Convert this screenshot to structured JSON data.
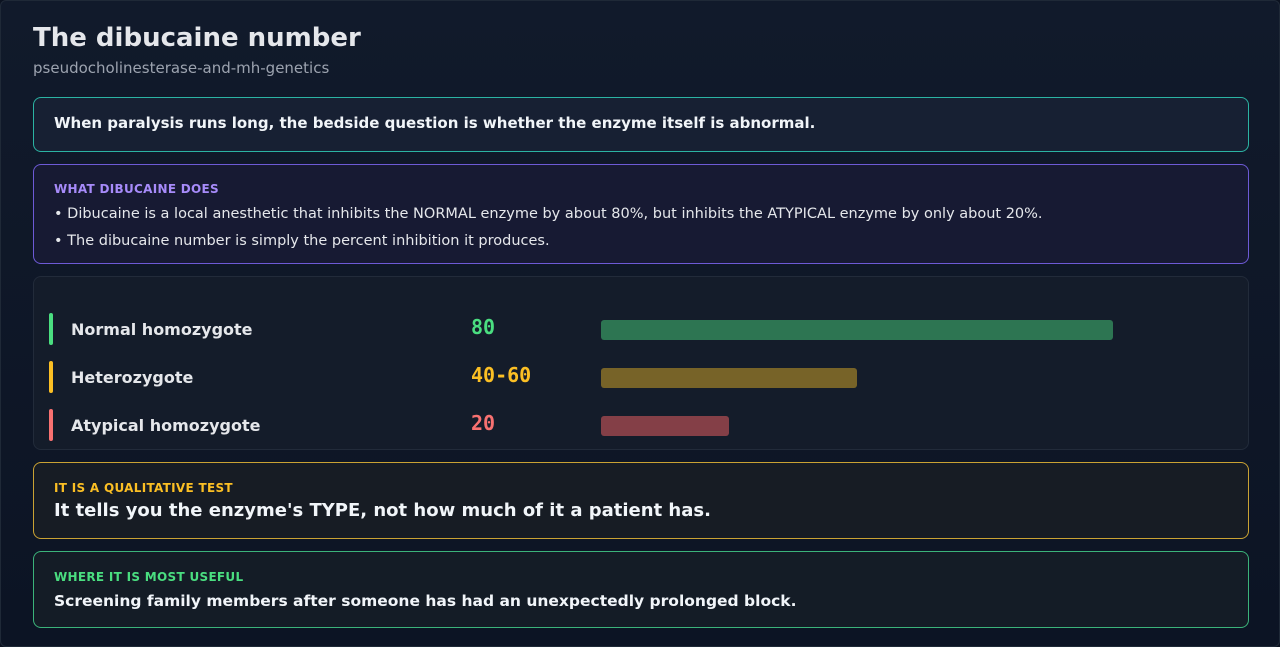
{
  "header": {
    "title": "The dibucaine number",
    "subtitle": "pseudocholinesterase-and-mh-genetics"
  },
  "hook": {
    "text": "When paralysis runs long, the bedside question is whether the enzyme itself is abnormal."
  },
  "what": {
    "label": "WHAT DIBUCAINE DOES",
    "bullets": [
      "• Dibucaine is a local anesthetic that inhibits the NORMAL enzyme by about 80%, but inhibits the ATYPICAL enzyme by only about 20%.",
      "• The dibucaine number is simply the percent inhibition it produces."
    ]
  },
  "genotypes": {
    "max_value": 80,
    "rows": [
      {
        "name": "Normal homozygote",
        "value": "80",
        "level": 80,
        "color": "#4ade80",
        "bar_color": "#2d7552"
      },
      {
        "name": "Heterozygote",
        "value": "40-60",
        "level": 40,
        "color": "#fbbf24",
        "bar_color": "#776328"
      },
      {
        "name": "Atypical homozygote",
        "value": "20",
        "level": 20,
        "color": "#f87171",
        "bar_color": "#843f47"
      }
    ]
  },
  "qualitative": {
    "label": "IT IS A QUALITATIVE TEST",
    "text": "It tells you the enzyme's TYPE, not how much of it a patient has."
  },
  "useful": {
    "label": "WHERE IT IS MOST USEFUL",
    "text": "Screening family members after someone has had an unexpectedly prolonged block."
  }
}
